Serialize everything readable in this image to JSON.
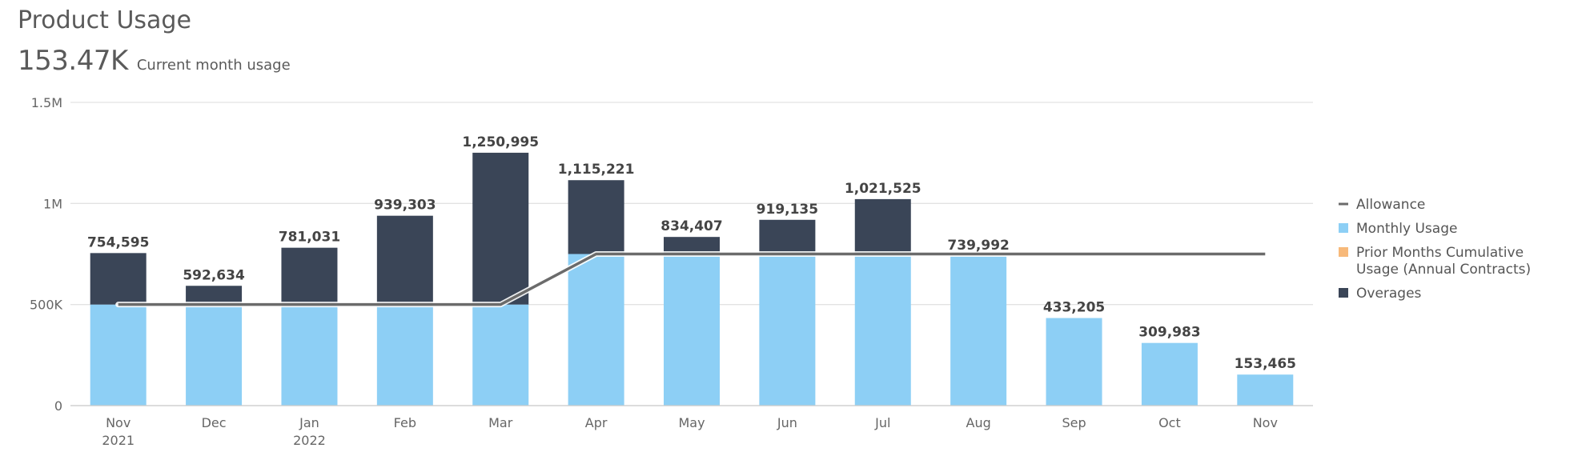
{
  "header": {
    "title": "Product Usage",
    "current_value": "153.47K",
    "current_label": "Current month usage"
  },
  "chart_data": {
    "type": "bar",
    "stacked": true,
    "categories": [
      [
        "Nov",
        "2021"
      ],
      [
        "Dec"
      ],
      [
        "Jan",
        "2022"
      ],
      [
        "Feb"
      ],
      [
        "Mar"
      ],
      [
        "Apr"
      ],
      [
        "May"
      ],
      [
        "Jun"
      ],
      [
        "Jul"
      ],
      [
        "Aug"
      ],
      [
        "Sep"
      ],
      [
        "Oct"
      ],
      [
        "Nov"
      ]
    ],
    "totals_labels": [
      "754,595",
      "592,634",
      "781,031",
      "939,303",
      "1,250,995",
      "1,115,221",
      "834,407",
      "919,135",
      "1,021,525",
      "739,992",
      "433,205",
      "309,983",
      "153,465"
    ],
    "series": [
      {
        "name": "Monthly Usage",
        "color": "#8dcff5",
        "values": [
          500000,
          500000,
          500000,
          500000,
          500000,
          750000,
          750000,
          750000,
          750000,
          739992,
          433205,
          309983,
          153465
        ]
      },
      {
        "name": "Prior Months Cumulative Usage (Annual Contracts)",
        "color": "#f7b97a",
        "values": [
          0,
          0,
          0,
          0,
          0,
          0,
          0,
          0,
          0,
          0,
          0,
          0,
          0
        ]
      },
      {
        "name": "Overages",
        "color": "#3a4557",
        "values": [
          254595,
          92634,
          281031,
          439303,
          750995,
          365221,
          84407,
          169135,
          271525,
          0,
          0,
          0,
          0
        ]
      }
    ],
    "line": {
      "name": "Allowance",
      "color": "#6b6b6b",
      "values": [
        500000,
        500000,
        500000,
        500000,
        500000,
        750000,
        750000,
        750000,
        750000,
        750000,
        750000,
        750000,
        750000
      ]
    },
    "yaxis": {
      "ticks": [
        0,
        500000,
        1000000,
        1500000
      ],
      "tick_labels": [
        "0",
        "500K",
        "1M",
        "1.5M"
      ],
      "ylim": [
        0,
        1500000
      ]
    },
    "grid": true,
    "legend_position": "right",
    "legend": [
      {
        "label": "Allowance",
        "kind": "line",
        "color": "#6b6b6b"
      },
      {
        "label": "Monthly Usage",
        "kind": "box",
        "color": "#8dcff5"
      },
      {
        "label": "Prior Months Cumulative Usage (Annual Contracts)",
        "lines": [
          "Prior Months Cumulative",
          "Usage (Annual Contracts)"
        ],
        "kind": "box",
        "color": "#f7b97a"
      },
      {
        "label": "Overages",
        "kind": "box",
        "color": "#3a4557"
      }
    ]
  }
}
